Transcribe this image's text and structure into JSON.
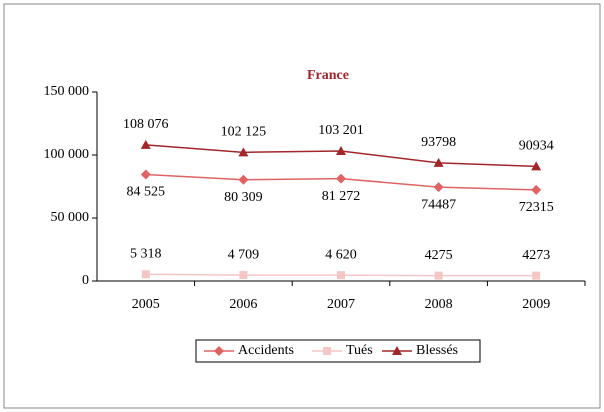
{
  "chart_data": {
    "type": "line",
    "title": "France",
    "categories": [
      "2005",
      "2006",
      "2007",
      "2008",
      "2009"
    ],
    "series": [
      {
        "name": "Accidents",
        "color": "#e06363",
        "marker": "diamond",
        "label_position": "below",
        "values": [
          84525,
          80309,
          81272,
          74487,
          72315
        ],
        "value_labels": [
          "84 525",
          "80 309",
          "81 272",
          "74487",
          "72315"
        ]
      },
      {
        "name": "Tués",
        "color": "#f5c6c6",
        "marker": "square",
        "label_position": "above",
        "values": [
          5318,
          4709,
          4620,
          4275,
          4273
        ],
        "value_labels": [
          "5 318",
          "4 709",
          "4 620",
          "4275",
          "4273"
        ]
      },
      {
        "name": "Blessés",
        "color": "#a3262a",
        "marker": "triangle",
        "label_position": "above",
        "values": [
          108076,
          102125,
          103201,
          93798,
          90934
        ],
        "value_labels": [
          "108 076",
          "102 125",
          "103 201",
          "93798",
          "90934"
        ]
      }
    ],
    "ylim": [
      0,
      150000
    ],
    "yticks": [
      0,
      {
        "value": 50000,
        "label": "50 000"
      },
      {
        "value": 100000,
        "label": "100 000"
      },
      {
        "value": 150000,
        "label": "150 000"
      }
    ],
    "grid": false,
    "legend": "bottom"
  }
}
